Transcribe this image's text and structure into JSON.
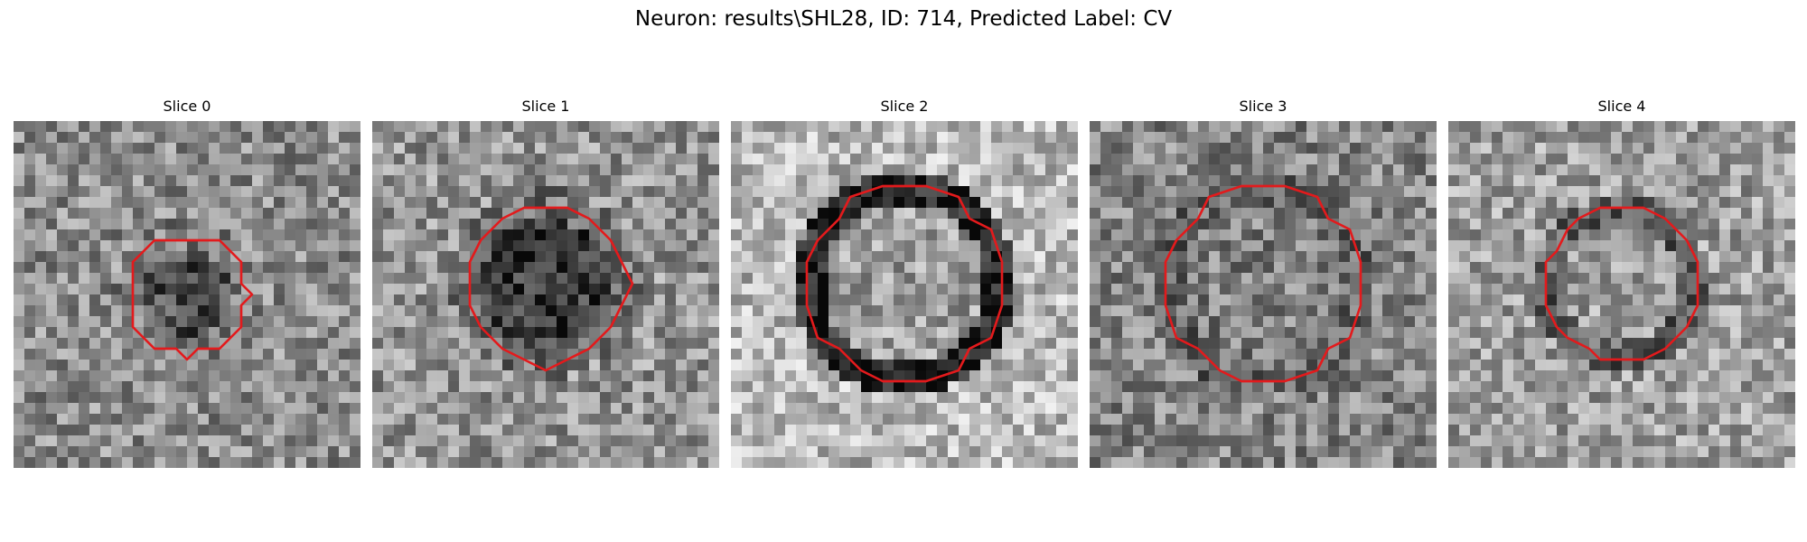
{
  "figure": {
    "title": "Neuron: results\\SHL28, ID: 714, Predicted Label: CV"
  },
  "panels": [
    {
      "title": "Slice 0",
      "seed": 11,
      "roi_center": [
        16,
        16
      ],
      "roi_radius": 5.5,
      "interior_tone": 0.3,
      "ring_tone": 0.5,
      "background_tone": 0.55
    },
    {
      "title": "Slice 1",
      "seed": 23,
      "roi_center": [
        16,
        15
      ],
      "roi_radius": 7.5,
      "interior_tone": 0.22,
      "ring_tone": 0.45,
      "background_tone": 0.58
    },
    {
      "title": "Slice 2",
      "seed": 37,
      "roi_center": [
        16,
        15
      ],
      "roi_radius": 9.0,
      "interior_tone": 0.62,
      "ring_tone": 0.12,
      "background_tone": 0.72
    },
    {
      "title": "Slice 3",
      "seed": 41,
      "roi_center": [
        16,
        15
      ],
      "roi_radius": 9.0,
      "interior_tone": 0.5,
      "ring_tone": 0.4,
      "background_tone": 0.52
    },
    {
      "title": "Slice 4",
      "seed": 53,
      "roi_center": [
        16,
        15
      ],
      "roi_radius": 7.0,
      "interior_tone": 0.62,
      "ring_tone": 0.38,
      "background_tone": 0.62
    }
  ],
  "grid_size": 32,
  "contour_color": "#e31a1c",
  "colormap": "gray"
}
